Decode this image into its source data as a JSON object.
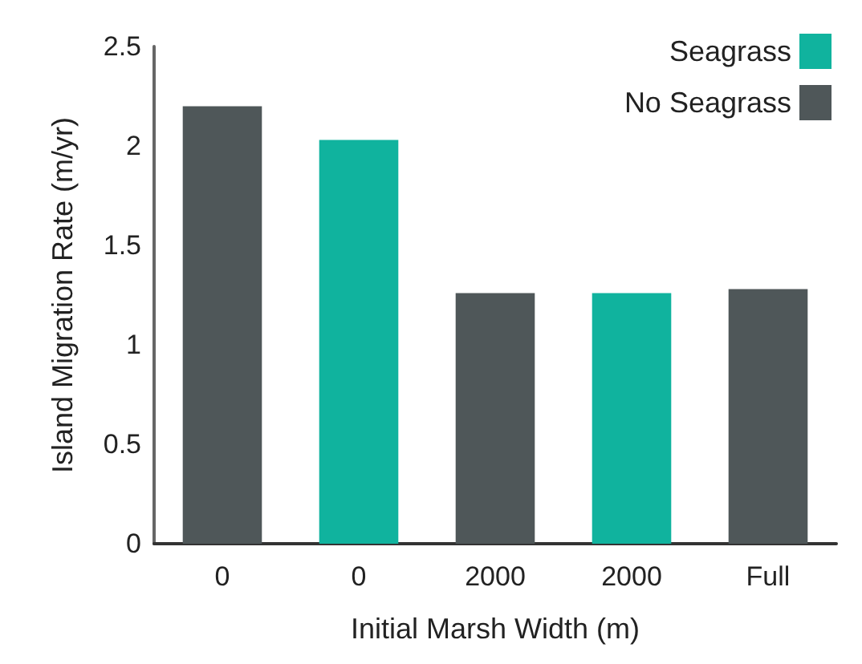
{
  "chart_data": {
    "type": "bar",
    "xlabel": "Initial Marsh Width (m)",
    "ylabel": "Island Migration Rate (m/yr)",
    "categories": [
      "0",
      "0",
      "2000",
      "2000",
      "Full"
    ],
    "series": [
      {
        "name": "Seagrass",
        "color": "#10b39e",
        "values": [
          null,
          2.03,
          null,
          1.26,
          null
        ]
      },
      {
        "name": "No Seagrass",
        "color": "#4f5759",
        "values": [
          2.2,
          null,
          1.26,
          null,
          1.28
        ]
      }
    ],
    "ylim": [
      0,
      2.5
    ],
    "yticks": [
      0,
      0.5,
      1,
      1.5,
      2,
      2.5
    ],
    "grid": false,
    "legend": "top right"
  }
}
